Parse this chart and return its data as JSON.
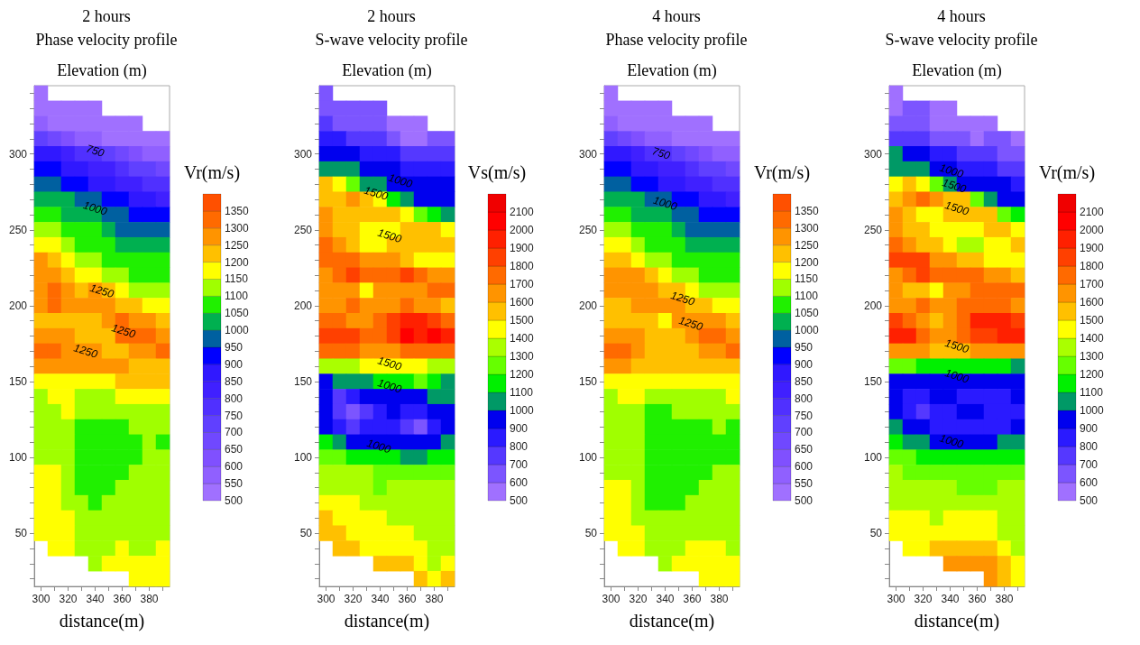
{
  "chart_data": [
    {
      "type": "heatmap",
      "title": "2 hours",
      "subtitle": "Phase velocity profile",
      "ylabel": "Elevation (m)",
      "xlabel": "distance(m)",
      "clabel": "Vr(m/s)",
      "categories": [
        "300",
        null,
        "320",
        null,
        "340",
        null,
        "360",
        null,
        "380",
        null
      ],
      "y_categories": [
        null,
        null,
        null,
        null,
        "300",
        null,
        null,
        null,
        null,
        "250",
        null,
        null,
        null,
        null,
        "200",
        null,
        null,
        null,
        null,
        "150",
        null,
        null,
        null,
        null,
        "100",
        null,
        null,
        null,
        null,
        "50",
        null,
        null,
        null
      ],
      "clim": [
        500,
        1400
      ],
      "cticks": [
        500,
        550,
        600,
        650,
        700,
        750,
        800,
        850,
        900,
        950,
        1000,
        1050,
        1100,
        1150,
        1200,
        1250,
        1300,
        1350
      ],
      "colors": [
        "#a070ff",
        "#9060ff",
        "#8050ff",
        "#7048ff",
        "#6040ff",
        "#5030ff",
        "#4020ff",
        "#3018ff",
        "#0000ff",
        "#0060a0",
        "#00b050",
        "#20f000",
        "#a0ff00",
        "#ffff00",
        "#ffc000",
        "#ff9400",
        "#ff6a00",
        "#ff5000"
      ],
      "cells": [
        [
          525,
          null,
          null,
          null,
          null,
          null,
          null,
          null,
          null,
          null
        ],
        [
          525,
          525,
          525,
          525,
          525,
          null,
          null,
          null,
          null,
          null
        ],
        [
          575,
          525,
          525,
          525,
          525,
          525,
          525,
          525,
          null,
          null
        ],
        [
          725,
          675,
          625,
          575,
          575,
          525,
          525,
          525,
          525,
          525
        ],
        [
          875,
          875,
          825,
          775,
          775,
          725,
          675,
          625,
          575,
          575
        ],
        [
          925,
          925,
          875,
          875,
          825,
          825,
          775,
          725,
          725,
          675
        ],
        [
          975,
          975,
          925,
          925,
          875,
          875,
          825,
          825,
          775,
          775
        ],
        [
          1025,
          1025,
          1025,
          975,
          975,
          925,
          925,
          875,
          875,
          825
        ],
        [
          1075,
          1075,
          1025,
          1025,
          1025,
          975,
          975,
          925,
          925,
          925
        ],
        [
          1125,
          1125,
          1075,
          1075,
          1075,
          1025,
          975,
          975,
          975,
          975
        ],
        [
          1175,
          1175,
          1125,
          1075,
          1075,
          1075,
          1025,
          1025,
          1025,
          1025
        ],
        [
          1275,
          1225,
          1175,
          1125,
          1125,
          1075,
          1075,
          1075,
          1075,
          1075
        ],
        [
          1275,
          1275,
          1225,
          1175,
          1175,
          1125,
          1125,
          1075,
          1075,
          1075
        ],
        [
          1275,
          1325,
          1275,
          1225,
          1275,
          1225,
          1175,
          1125,
          1125,
          1125
        ],
        [
          1275,
          1325,
          1275,
          1275,
          1275,
          1275,
          1225,
          1225,
          1175,
          1175
        ],
        [
          1225,
          1225,
          1225,
          1225,
          1225,
          1275,
          1325,
          1275,
          1275,
          1225
        ],
        [
          1275,
          1275,
          1275,
          1225,
          1225,
          1225,
          1325,
          1325,
          1325,
          1275
        ],
        [
          1325,
          1325,
          1275,
          1275,
          1275,
          1225,
          1225,
          1275,
          1275,
          1325
        ],
        [
          1275,
          1275,
          1275,
          1275,
          1275,
          1275,
          1275,
          1225,
          1225,
          1225
        ],
        [
          1175,
          1175,
          1175,
          1175,
          1175,
          1175,
          1225,
          1225,
          1225,
          1225
        ],
        [
          1125,
          1175,
          1175,
          1125,
          1125,
          1125,
          1175,
          1175,
          1175,
          1175
        ],
        [
          1125,
          1125,
          1175,
          1125,
          1125,
          1125,
          1125,
          1125,
          1125,
          1125
        ],
        [
          1125,
          1125,
          1125,
          1075,
          1075,
          1075,
          1075,
          1125,
          1125,
          1125
        ],
        [
          1125,
          1125,
          1125,
          1075,
          1075,
          1075,
          1075,
          1075,
          1125,
          1075
        ],
        [
          1125,
          1125,
          1125,
          1075,
          1075,
          1075,
          1075,
          1075,
          1125,
          1125
        ],
        [
          1175,
          1175,
          1125,
          1075,
          1075,
          1075,
          1075,
          1125,
          1125,
          1125
        ],
        [
          1175,
          1175,
          1125,
          1075,
          1075,
          1075,
          1125,
          1125,
          1125,
          1125
        ],
        [
          1175,
          1175,
          1125,
          1125,
          1075,
          1125,
          1125,
          1125,
          1125,
          1125
        ],
        [
          1175,
          1175,
          1175,
          1125,
          1125,
          1125,
          1125,
          1125,
          1125,
          1125
        ],
        [
          1175,
          1175,
          1175,
          1125,
          1125,
          1125,
          1125,
          1125,
          1125,
          1125
        ],
        [
          null,
          1175,
          1175,
          1125,
          1125,
          1125,
          1175,
          1125,
          1125,
          1175
        ],
        [
          null,
          null,
          null,
          null,
          1125,
          1175,
          1175,
          1175,
          1175,
          1175
        ],
        [
          null,
          null,
          null,
          null,
          null,
          null,
          null,
          1175,
          1175,
          1175
        ]
      ],
      "annotations": [
        "750",
        "1000",
        "1250",
        "1250",
        "1250"
      ]
    },
    {
      "type": "heatmap",
      "title": "2 hours",
      "subtitle": "S-wave velocity profile",
      "ylabel": "Elevation (m)",
      "xlabel": "distance(m)",
      "clabel": "Vs(m/s)",
      "categories": [
        "300",
        null,
        "320",
        null,
        "340",
        null,
        "360",
        null,
        "380",
        null
      ],
      "y_categories": [
        null,
        null,
        null,
        null,
        "300",
        null,
        null,
        null,
        null,
        "250",
        null,
        null,
        null,
        null,
        "200",
        null,
        null,
        null,
        null,
        "150",
        null,
        null,
        null,
        null,
        "100",
        null,
        null,
        null,
        null,
        "50",
        null,
        null,
        null
      ],
      "clim": [
        500,
        2200
      ],
      "cticks": [
        500,
        600,
        700,
        800,
        900,
        1000,
        1100,
        1200,
        1300,
        1400,
        1500,
        1600,
        1700,
        1800,
        1900,
        2000,
        2100
      ],
      "colors": [
        "#a070ff",
        "#7c55ff",
        "#5538ff",
        "#2a1aff",
        "#0000ee",
        "#009966",
        "#00f000",
        "#66ff00",
        "#aaff00",
        "#ffff00",
        "#ffc000",
        "#ff9400",
        "#ff6a00",
        "#ff4000",
        "#ff2000",
        "#ff0000",
        "#f00000"
      ],
      "cells": [
        [
          650,
          null,
          null,
          null,
          null,
          null,
          null,
          null,
          null,
          null
        ],
        [
          650,
          650,
          650,
          650,
          650,
          null,
          null,
          null,
          null,
          null
        ],
        [
          750,
          650,
          650,
          650,
          650,
          550,
          550,
          550,
          null,
          null
        ],
        [
          850,
          850,
          750,
          750,
          750,
          650,
          550,
          550,
          650,
          650
        ],
        [
          950,
          950,
          950,
          850,
          850,
          850,
          750,
          750,
          750,
          750
        ],
        [
          1050,
          1050,
          1050,
          950,
          950,
          950,
          850,
          850,
          850,
          850
        ],
        [
          1550,
          1450,
          1250,
          1050,
          1050,
          950,
          950,
          950,
          950,
          950
        ],
        [
          1550,
          1550,
          1650,
          1550,
          1450,
          1150,
          1050,
          950,
          950,
          950
        ],
        [
          1650,
          1550,
          1550,
          1550,
          1550,
          1550,
          1450,
          1250,
          1150,
          1050
        ],
        [
          1650,
          1550,
          1550,
          1450,
          1450,
          1450,
          1550,
          1550,
          1550,
          1450
        ],
        [
          1750,
          1650,
          1550,
          1450,
          1450,
          1550,
          1550,
          1550,
          1550,
          1550
        ],
        [
          1750,
          1750,
          1750,
          1650,
          1650,
          1650,
          1550,
          1450,
          1450,
          1450
        ],
        [
          1650,
          1750,
          1850,
          1750,
          1750,
          1750,
          1850,
          1750,
          1650,
          1650
        ],
        [
          1650,
          1650,
          1650,
          1450,
          1650,
          1650,
          1650,
          1650,
          1750,
          1750
        ],
        [
          1650,
          1650,
          1750,
          1650,
          1650,
          1650,
          1750,
          1650,
          1650,
          1550
        ],
        [
          1750,
          1750,
          1650,
          1650,
          1750,
          1850,
          1950,
          1950,
          1850,
          1750
        ],
        [
          1850,
          1850,
          1850,
          1750,
          1750,
          1850,
          2050,
          1950,
          2050,
          1950
        ],
        [
          1750,
          1750,
          1750,
          1650,
          1650,
          1650,
          1750,
          1750,
          1750,
          1750
        ],
        [
          1350,
          1350,
          1350,
          1450,
          1450,
          1450,
          1450,
          1450,
          1350,
          1350
        ],
        [
          950,
          1050,
          1050,
          1050,
          1150,
          1150,
          1150,
          1250,
          1150,
          1050
        ],
        [
          950,
          750,
          850,
          950,
          950,
          950,
          950,
          950,
          1050,
          1050
        ],
        [
          950,
          750,
          650,
          750,
          850,
          950,
          850,
          850,
          950,
          950
        ],
        [
          950,
          850,
          750,
          850,
          850,
          850,
          750,
          650,
          850,
          950
        ],
        [
          1150,
          1050,
          950,
          950,
          950,
          950,
          950,
          950,
          950,
          1050
        ],
        [
          1250,
          1250,
          1150,
          1150,
          1150,
          1150,
          1050,
          1050,
          1150,
          1150
        ],
        [
          1350,
          1350,
          1350,
          1350,
          1250,
          1250,
          1250,
          1250,
          1250,
          1250
        ],
        [
          1350,
          1350,
          1350,
          1350,
          1250,
          1350,
          1350,
          1350,
          1350,
          1350
        ],
        [
          1450,
          1450,
          1450,
          1350,
          1350,
          1350,
          1350,
          1350,
          1350,
          1350
        ],
        [
          1550,
          1450,
          1450,
          1450,
          1450,
          1350,
          1350,
          1350,
          1350,
          1350
        ],
        [
          1550,
          1550,
          1450,
          1450,
          1450,
          1450,
          1450,
          1350,
          1350,
          1350
        ],
        [
          null,
          1550,
          1550,
          1450,
          1450,
          1450,
          1450,
          1450,
          1350,
          1350
        ],
        [
          null,
          null,
          null,
          null,
          1550,
          1550,
          1550,
          1450,
          1350,
          1450
        ],
        [
          null,
          null,
          null,
          null,
          null,
          null,
          null,
          1550,
          1450,
          1550
        ]
      ],
      "annotations": [
        "1000",
        "1500",
        "1500",
        "1500",
        "1000",
        "1000"
      ]
    },
    {
      "type": "heatmap",
      "title": "4 hours",
      "subtitle": "Phase velocity profile",
      "ylabel": "Elevation (m)",
      "xlabel": "distance(m)",
      "clabel": "Vr(m/s)",
      "categories": [
        "300",
        null,
        "320",
        null,
        "340",
        null,
        "360",
        null,
        "380",
        null
      ],
      "y_categories": [
        null,
        null,
        null,
        null,
        "300",
        null,
        null,
        null,
        null,
        "250",
        null,
        null,
        null,
        null,
        "200",
        null,
        null,
        null,
        null,
        "150",
        null,
        null,
        null,
        null,
        "100",
        null,
        null,
        null,
        null,
        "50",
        null,
        null,
        null
      ],
      "clim": [
        500,
        1400
      ],
      "cticks": [
        500,
        550,
        600,
        650,
        700,
        750,
        800,
        850,
        900,
        950,
        1000,
        1050,
        1100,
        1150,
        1200,
        1250,
        1300,
        1350
      ],
      "colors": [
        "#a070ff",
        "#9060ff",
        "#8050ff",
        "#7048ff",
        "#6040ff",
        "#5030ff",
        "#4020ff",
        "#3018ff",
        "#0000ff",
        "#0060a0",
        "#00b050",
        "#20f000",
        "#a0ff00",
        "#ffff00",
        "#ffc000",
        "#ff9400",
        "#ff6a00",
        "#ff5000"
      ],
      "cells": [
        [
          525,
          null,
          null,
          null,
          null,
          null,
          null,
          null,
          null,
          null
        ],
        [
          525,
          525,
          525,
          525,
          525,
          null,
          null,
          null,
          null,
          null
        ],
        [
          575,
          525,
          525,
          525,
          525,
          525,
          525,
          525,
          null,
          null
        ],
        [
          725,
          675,
          625,
          575,
          575,
          525,
          525,
          525,
          525,
          525
        ],
        [
          875,
          875,
          825,
          775,
          775,
          725,
          675,
          625,
          575,
          575
        ],
        [
          925,
          925,
          875,
          875,
          825,
          825,
          775,
          725,
          725,
          675
        ],
        [
          975,
          975,
          925,
          925,
          875,
          875,
          825,
          825,
          775,
          775
        ],
        [
          1025,
          1025,
          1025,
          975,
          975,
          925,
          925,
          875,
          875,
          825
        ],
        [
          1075,
          1075,
          1025,
          1025,
          1025,
          975,
          975,
          925,
          925,
          925
        ],
        [
          1125,
          1125,
          1075,
          1075,
          1075,
          1025,
          975,
          975,
          975,
          975
        ],
        [
          1175,
          1175,
          1125,
          1075,
          1075,
          1075,
          1025,
          1025,
          1025,
          1025
        ],
        [
          1225,
          1225,
          1175,
          1125,
          1125,
          1075,
          1075,
          1075,
          1075,
          1075
        ],
        [
          1275,
          1275,
          1275,
          1225,
          1175,
          1125,
          1125,
          1075,
          1075,
          1075
        ],
        [
          1275,
          1275,
          1275,
          1275,
          1225,
          1225,
          1175,
          1125,
          1125,
          1125
        ],
        [
          1225,
          1225,
          1275,
          1275,
          1275,
          1275,
          1225,
          1225,
          1175,
          1175
        ],
        [
          1225,
          1225,
          1225,
          1225,
          1175,
          1275,
          1275,
          1275,
          1275,
          1225
        ],
        [
          1275,
          1275,
          1275,
          1225,
          1225,
          1225,
          1275,
          1325,
          1325,
          1275
        ],
        [
          1325,
          1325,
          1275,
          1225,
          1225,
          1225,
          1225,
          1275,
          1275,
          1325
        ],
        [
          1275,
          1275,
          1225,
          1225,
          1225,
          1225,
          1225,
          1225,
          1225,
          1225
        ],
        [
          1175,
          1175,
          1175,
          1175,
          1175,
          1175,
          1175,
          1175,
          1175,
          1175
        ],
        [
          1125,
          1175,
          1175,
          1125,
          1125,
          1125,
          1125,
          1125,
          1125,
          1175
        ],
        [
          1125,
          1125,
          1125,
          1075,
          1075,
          1125,
          1125,
          1125,
          1125,
          1125
        ],
        [
          1125,
          1125,
          1125,
          1075,
          1075,
          1075,
          1075,
          1075,
          1125,
          1075
        ],
        [
          1125,
          1125,
          1125,
          1075,
          1075,
          1075,
          1075,
          1075,
          1075,
          1075
        ],
        [
          1125,
          1125,
          1125,
          1075,
          1075,
          1075,
          1075,
          1075,
          1075,
          1075
        ],
        [
          1125,
          1125,
          1125,
          1075,
          1075,
          1075,
          1075,
          1075,
          1125,
          1125
        ],
        [
          1175,
          1175,
          1125,
          1075,
          1075,
          1075,
          1075,
          1125,
          1125,
          1125
        ],
        [
          1175,
          1175,
          1125,
          1075,
          1075,
          1075,
          1125,
          1125,
          1125,
          1125
        ],
        [
          1175,
          1175,
          1125,
          1125,
          1125,
          1125,
          1125,
          1125,
          1125,
          1125
        ],
        [
          1175,
          1175,
          1175,
          1125,
          1125,
          1125,
          1125,
          1125,
          1125,
          1125
        ],
        [
          null,
          1175,
          1175,
          1125,
          1125,
          1125,
          1175,
          1175,
          1175,
          1125
        ],
        [
          null,
          null,
          null,
          null,
          1125,
          1175,
          1175,
          1175,
          1175,
          1175
        ],
        [
          null,
          null,
          null,
          null,
          null,
          null,
          null,
          1175,
          1175,
          1175
        ]
      ],
      "annotations": [
        "750",
        "1000",
        "1250",
        "1250"
      ]
    },
    {
      "type": "heatmap",
      "title": "4 hours",
      "subtitle": "S-wave velocity profile",
      "ylabel": "Elevation (m)",
      "xlabel": "distance(m)",
      "clabel": "Vr(m/s)",
      "categories": [
        "300",
        null,
        "320",
        null,
        "340",
        null,
        "360",
        null,
        "380",
        null
      ],
      "y_categories": [
        null,
        null,
        null,
        null,
        "300",
        null,
        null,
        null,
        null,
        "250",
        null,
        null,
        null,
        null,
        "200",
        null,
        null,
        null,
        null,
        "150",
        null,
        null,
        null,
        null,
        "100",
        null,
        null,
        null,
        null,
        "50",
        null,
        null,
        null
      ],
      "clim": [
        500,
        2200
      ],
      "cticks": [
        500,
        600,
        700,
        800,
        900,
        1000,
        1100,
        1200,
        1300,
        1400,
        1500,
        1600,
        1700,
        1800,
        1900,
        2000,
        2100
      ],
      "colors": [
        "#a070ff",
        "#7c55ff",
        "#5538ff",
        "#2a1aff",
        "#0000ee",
        "#009966",
        "#00f000",
        "#66ff00",
        "#aaff00",
        "#ffff00",
        "#ffc000",
        "#ff9400",
        "#ff6a00",
        "#ff4000",
        "#ff2000",
        "#ff0000",
        "#f00000"
      ],
      "cells": [
        [
          550,
          null,
          null,
          null,
          null,
          null,
          null,
          null,
          null,
          null
        ],
        [
          550,
          650,
          650,
          550,
          550,
          null,
          null,
          null,
          null,
          null
        ],
        [
          650,
          650,
          650,
          550,
          550,
          550,
          550,
          550,
          null,
          null
        ],
        [
          750,
          750,
          750,
          650,
          650,
          650,
          550,
          650,
          650,
          550
        ],
        [
          1050,
          950,
          950,
          850,
          850,
          750,
          750,
          750,
          650,
          650
        ],
        [
          1050,
          1050,
          1050,
          950,
          950,
          850,
          850,
          850,
          750,
          750
        ],
        [
          1450,
          1550,
          1450,
          1250,
          1050,
          950,
          950,
          950,
          950,
          850
        ],
        [
          1550,
          1650,
          1750,
          1650,
          1550,
          1550,
          1250,
          1050,
          950,
          950
        ],
        [
          1650,
          1550,
          1450,
          1450,
          1550,
          1550,
          1550,
          1550,
          1250,
          1150
        ],
        [
          1650,
          1550,
          1550,
          1450,
          1450,
          1450,
          1450,
          1550,
          1550,
          1450
        ],
        [
          1750,
          1650,
          1550,
          1550,
          1450,
          1350,
          1350,
          1450,
          1450,
          1550
        ],
        [
          1850,
          1850,
          1850,
          1650,
          1650,
          1550,
          1550,
          1450,
          1450,
          1450
        ],
        [
          1650,
          1750,
          1850,
          1750,
          1750,
          1750,
          1750,
          1650,
          1650,
          1550
        ],
        [
          1650,
          1550,
          1550,
          1450,
          1650,
          1650,
          1750,
          1750,
          1750,
          1750
        ],
        [
          1650,
          1650,
          1750,
          1650,
          1650,
          1750,
          1750,
          1750,
          1750,
          1650
        ],
        [
          1850,
          1750,
          1650,
          1550,
          1650,
          1750,
          1950,
          1950,
          1950,
          1850
        ],
        [
          1950,
          1950,
          1750,
          1650,
          1650,
          1750,
          1850,
          1850,
          1950,
          1950
        ],
        [
          1650,
          1650,
          1650,
          1550,
          1550,
          1550,
          1650,
          1650,
          1650,
          1650
        ],
        [
          1250,
          1250,
          1150,
          1150,
          1150,
          1150,
          1150,
          1150,
          1150,
          1050
        ],
        [
          950,
          950,
          950,
          950,
          950,
          950,
          950,
          950,
          950,
          950
        ],
        [
          950,
          850,
          850,
          950,
          950,
          850,
          850,
          850,
          850,
          950
        ],
        [
          950,
          850,
          750,
          850,
          850,
          950,
          950,
          850,
          850,
          850
        ],
        [
          1050,
          950,
          950,
          850,
          850,
          850,
          850,
          850,
          850,
          950
        ],
        [
          1150,
          1050,
          1050,
          950,
          950,
          950,
          950,
          950,
          1050,
          1050
        ],
        [
          1250,
          1250,
          1150,
          1150,
          1150,
          1150,
          1150,
          1150,
          1150,
          1150
        ],
        [
          1350,
          1250,
          1250,
          1250,
          1250,
          1250,
          1250,
          1250,
          1250,
          1250
        ],
        [
          1350,
          1350,
          1350,
          1350,
          1350,
          1250,
          1250,
          1250,
          1350,
          1350
        ],
        [
          1350,
          1350,
          1350,
          1350,
          1350,
          1350,
          1350,
          1350,
          1350,
          1350
        ],
        [
          1450,
          1450,
          1450,
          1350,
          1450,
          1450,
          1450,
          1450,
          1350,
          1350
        ],
        [
          1450,
          1450,
          1450,
          1450,
          1450,
          1450,
          1450,
          1450,
          1350,
          1350
        ],
        [
          null,
          1450,
          1450,
          1550,
          1550,
          1550,
          1550,
          1550,
          1450,
          1350
        ],
        [
          null,
          null,
          null,
          null,
          1650,
          1650,
          1650,
          1650,
          1550,
          1450
        ],
        [
          null,
          null,
          null,
          null,
          null,
          null,
          null,
          1650,
          1550,
          1450
        ]
      ],
      "annotations": [
        "1000",
        "1500",
        "1500",
        "1500",
        "1000",
        "1000"
      ]
    }
  ]
}
